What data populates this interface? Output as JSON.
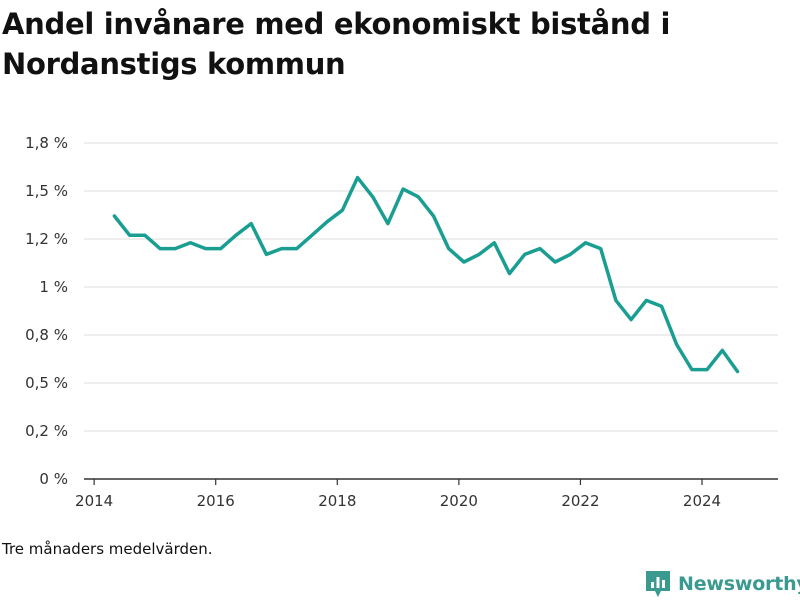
{
  "title": "Andel invånare med ekonomiskt bistånd i Nordanstigs kommun",
  "footnote": "Tre månaders medelvärden.",
  "brand": {
    "name": "Newsworthy",
    "icon": "newsworthy-logo-icon",
    "color": "#3a9a90"
  },
  "colors": {
    "line": "#1a9e92",
    "grid": "#dddddd",
    "axis": "#333333"
  },
  "chart_data": {
    "type": "line",
    "title": "Andel invånare med ekonomiskt bistånd i Nordanstigs kommun",
    "xlabel": "",
    "ylabel": "",
    "grid": true,
    "x_ticks": [
      "2014",
      "2016",
      "2018",
      "2020",
      "2022",
      "2024"
    ],
    "y_ticks": [
      {
        "value": 0,
        "label": "0 %"
      },
      {
        "value": 0.25,
        "label": "0,2 %"
      },
      {
        "value": 0.5,
        "label": "0,5 %"
      },
      {
        "value": 0.75,
        "label": "0,8 %"
      },
      {
        "value": 1.0,
        "label": "1 %"
      },
      {
        "value": 1.25,
        "label": "1,2 %"
      },
      {
        "value": 1.5,
        "label": "1,5 %"
      },
      {
        "value": 1.75,
        "label": "1,8 %"
      }
    ],
    "ylim": [
      0,
      1.75
    ],
    "xlim": [
      "2013-11",
      "2025-04"
    ],
    "series": [
      {
        "x": [
          "2014-05",
          "2014-08",
          "2014-11",
          "2015-02",
          "2015-05",
          "2015-08",
          "2015-11",
          "2016-02",
          "2016-05",
          "2016-08",
          "2016-11",
          "2017-02",
          "2017-05",
          "2017-08",
          "2017-11",
          "2018-02",
          "2018-05",
          "2018-08",
          "2018-11",
          "2019-02",
          "2019-05",
          "2019-08",
          "2019-11",
          "2020-02",
          "2020-05",
          "2020-08",
          "2020-11",
          "2021-02",
          "2021-05",
          "2021-08",
          "2021-11",
          "2022-02",
          "2022-05",
          "2022-08",
          "2022-11",
          "2023-02",
          "2023-05",
          "2023-08",
          "2023-11",
          "2024-02",
          "2024-05",
          "2024-08"
        ],
        "values": [
          1.37,
          1.27,
          1.27,
          1.2,
          1.2,
          1.23,
          1.2,
          1.2,
          1.27,
          1.33,
          1.17,
          1.2,
          1.2,
          1.27,
          1.34,
          1.4,
          1.57,
          1.47,
          1.33,
          1.51,
          1.47,
          1.37,
          1.2,
          1.13,
          1.17,
          1.23,
          1.07,
          1.17,
          1.2,
          1.13,
          1.17,
          1.23,
          1.2,
          0.93,
          0.83,
          0.93,
          0.9,
          0.7,
          0.57,
          0.57,
          0.67,
          0.56
        ]
      }
    ]
  }
}
